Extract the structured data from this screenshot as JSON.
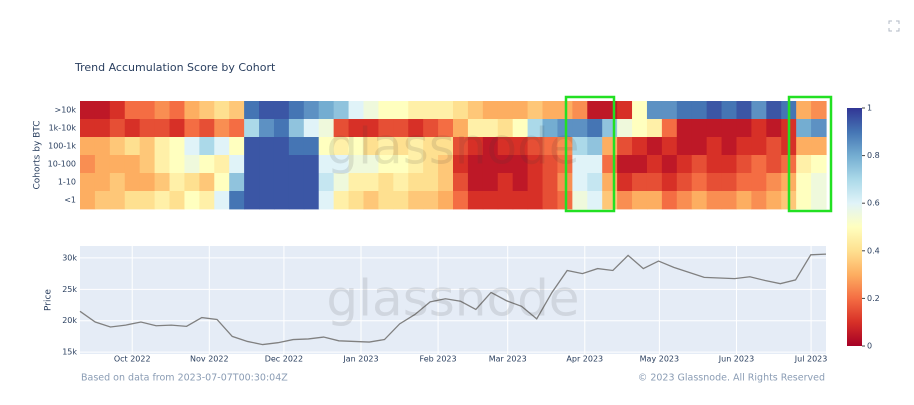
{
  "chart_data": [
    {
      "type": "heatmap",
      "title": "Trend Accumulation Score by Cohort",
      "y_label": "Cohorts by BTC",
      "zlim": [
        0,
        1
      ],
      "zticks": [
        0,
        0.2,
        0.4,
        0.6,
        0.8,
        1
      ],
      "colorscale": [
        [
          0,
          "#a50026"
        ],
        [
          0.1,
          "#d73027"
        ],
        [
          0.2,
          "#f46d43"
        ],
        [
          0.3,
          "#fdae61"
        ],
        [
          0.4,
          "#fee090"
        ],
        [
          0.5,
          "#ffffbf"
        ],
        [
          0.6,
          "#e0f3f8"
        ],
        [
          0.7,
          "#abd9e9"
        ],
        [
          0.8,
          "#74add1"
        ],
        [
          0.9,
          "#4575b4"
        ],
        [
          1,
          "#313695"
        ]
      ],
      "series": [
        {
          "name": ">10k",
          "values": [
            0.05,
            0.05,
            0.1,
            0.2,
            0.2,
            0.25,
            0.2,
            0.3,
            0.35,
            0.4,
            0.35,
            0.9,
            0.95,
            0.95,
            0.9,
            0.85,
            0.8,
            0.75,
            0.6,
            0.55,
            0.5,
            0.5,
            0.45,
            0.45,
            0.45,
            0.4,
            0.35,
            0.3,
            0.3,
            0.3,
            0.35,
            0.3,
            0.3,
            0.25,
            0.05,
            0.05,
            0.1,
            0.5,
            0.85,
            0.85,
            0.9,
            0.9,
            0.95,
            0.9,
            0.95,
            0.85,
            0.95,
            0.9,
            0.3,
            0.25
          ]
        },
        {
          "name": "1k-10k",
          "values": [
            0.1,
            0.1,
            0.15,
            0.1,
            0.15,
            0.15,
            0.1,
            0.2,
            0.15,
            0.25,
            0.2,
            0.7,
            0.85,
            0.9,
            0.75,
            0.6,
            0.55,
            0.15,
            0.1,
            0.1,
            0.15,
            0.15,
            0.1,
            0.15,
            0.2,
            0.3,
            0.45,
            0.45,
            0.4,
            0.5,
            0.7,
            0.8,
            0.85,
            0.85,
            0.9,
            0.75,
            0.55,
            0.5,
            0.45,
            0.2,
            0.05,
            0.05,
            0.05,
            0.05,
            0.05,
            0.1,
            0.05,
            0.1,
            0.8,
            0.85
          ]
        },
        {
          "name": "100-1k",
          "values": [
            0.3,
            0.3,
            0.35,
            0.4,
            0.35,
            0.45,
            0.5,
            0.6,
            0.7,
            0.6,
            0.5,
            0.95,
            0.95,
            0.95,
            0.9,
            0.9,
            0.5,
            0.45,
            0.5,
            0.4,
            0.45,
            0.4,
            0.45,
            0.4,
            0.4,
            0.15,
            0.1,
            0.05,
            0.1,
            0.1,
            0.15,
            0.2,
            0.25,
            0.7,
            0.75,
            0.3,
            0.15,
            0.1,
            0.05,
            0.1,
            0.05,
            0.05,
            0.1,
            0.05,
            0.1,
            0.1,
            0.15,
            0.1,
            0.3,
            0.3
          ]
        },
        {
          "name": "10-100",
          "values": [
            0.25,
            0.3,
            0.3,
            0.3,
            0.35,
            0.45,
            0.5,
            0.55,
            0.5,
            0.45,
            0.6,
            0.95,
            0.95,
            0.95,
            0.95,
            0.95,
            0.6,
            0.6,
            0.55,
            0.55,
            0.5,
            0.5,
            0.45,
            0.4,
            0.35,
            0.1,
            0.05,
            0.05,
            0.05,
            0.05,
            0.1,
            0.15,
            0.2,
            0.6,
            0.6,
            0.2,
            0.05,
            0.05,
            0.1,
            0.05,
            0.1,
            0.15,
            0.1,
            0.1,
            0.15,
            0.2,
            0.15,
            0.2,
            0.45,
            0.5
          ]
        },
        {
          "name": "1-10",
          "values": [
            0.3,
            0.3,
            0.35,
            0.3,
            0.3,
            0.35,
            0.45,
            0.4,
            0.35,
            0.5,
            0.75,
            0.95,
            0.95,
            0.95,
            0.95,
            0.95,
            0.65,
            0.55,
            0.45,
            0.45,
            0.4,
            0.45,
            0.4,
            0.4,
            0.35,
            0.15,
            0.05,
            0.05,
            0.1,
            0.05,
            0.1,
            0.15,
            0.25,
            0.6,
            0.65,
            0.3,
            0.1,
            0.15,
            0.15,
            0.1,
            0.15,
            0.2,
            0.15,
            0.15,
            0.2,
            0.2,
            0.25,
            0.3,
            0.5,
            0.55
          ]
        },
        {
          "name": "<1",
          "values": [
            0.3,
            0.35,
            0.35,
            0.4,
            0.4,
            0.45,
            0.4,
            0.5,
            0.45,
            0.6,
            0.9,
            0.95,
            0.95,
            0.95,
            0.95,
            0.95,
            0.6,
            0.45,
            0.4,
            0.35,
            0.4,
            0.4,
            0.35,
            0.35,
            0.3,
            0.2,
            0.1,
            0.1,
            0.1,
            0.1,
            0.1,
            0.15,
            0.2,
            0.55,
            0.6,
            0.35,
            0.25,
            0.3,
            0.3,
            0.2,
            0.25,
            0.3,
            0.25,
            0.25,
            0.3,
            0.25,
            0.3,
            0.35,
            0.5,
            0.55
          ]
        }
      ]
    },
    {
      "type": "line",
      "y_label": "Price",
      "color": "#808080",
      "grid": true,
      "xlim": [
        "2022-09-10",
        "2023-07-07"
      ],
      "xticks": [
        {
          "value": "2022-10-01",
          "label": "Oct 2022"
        },
        {
          "value": "2022-11-01",
          "label": "Nov 2022"
        },
        {
          "value": "2022-12-01",
          "label": "Dec 2022"
        },
        {
          "value": "2023-01-01",
          "label": "Jan 2023"
        },
        {
          "value": "2023-02-01",
          "label": "Feb 2023"
        },
        {
          "value": "2023-03-01",
          "label": "Mar 2023"
        },
        {
          "value": "2023-04-01",
          "label": "Apr 2023"
        },
        {
          "value": "2023-05-01",
          "label": "May 2023"
        },
        {
          "value": "2023-06-01",
          "label": "Jun 2023"
        },
        {
          "value": "2023-07-01",
          "label": "Jul 2023"
        }
      ],
      "ylim": [
        14700,
        31900
      ],
      "yticks": [
        {
          "value": 15000,
          "label": "15k"
        },
        {
          "value": 20000,
          "label": "20k"
        },
        {
          "value": 25000,
          "label": "25k"
        },
        {
          "value": 30000,
          "label": "30k"
        }
      ],
      "values": [
        21500,
        19800,
        19000,
        19300,
        19800,
        19200,
        19300,
        19100,
        20500,
        20200,
        17500,
        16700,
        16200,
        16500,
        17000,
        17100,
        17400,
        16800,
        16700,
        16600,
        17000,
        19500,
        21000,
        23000,
        23500,
        23100,
        21800,
        24500,
        23200,
        22300,
        20300,
        24500,
        28000,
        27500,
        28300,
        28000,
        30400,
        28300,
        29500,
        28500,
        27700,
        26900,
        26800,
        26700,
        27000,
        26400,
        25900,
        26500,
        30500,
        30600
      ]
    }
  ],
  "watermark": "glassnode",
  "footer": {
    "source": "Based on data from 2023-07-07T00:30:04Z",
    "copyright": "© 2023 Glassnode. All Rights Reserved"
  }
}
